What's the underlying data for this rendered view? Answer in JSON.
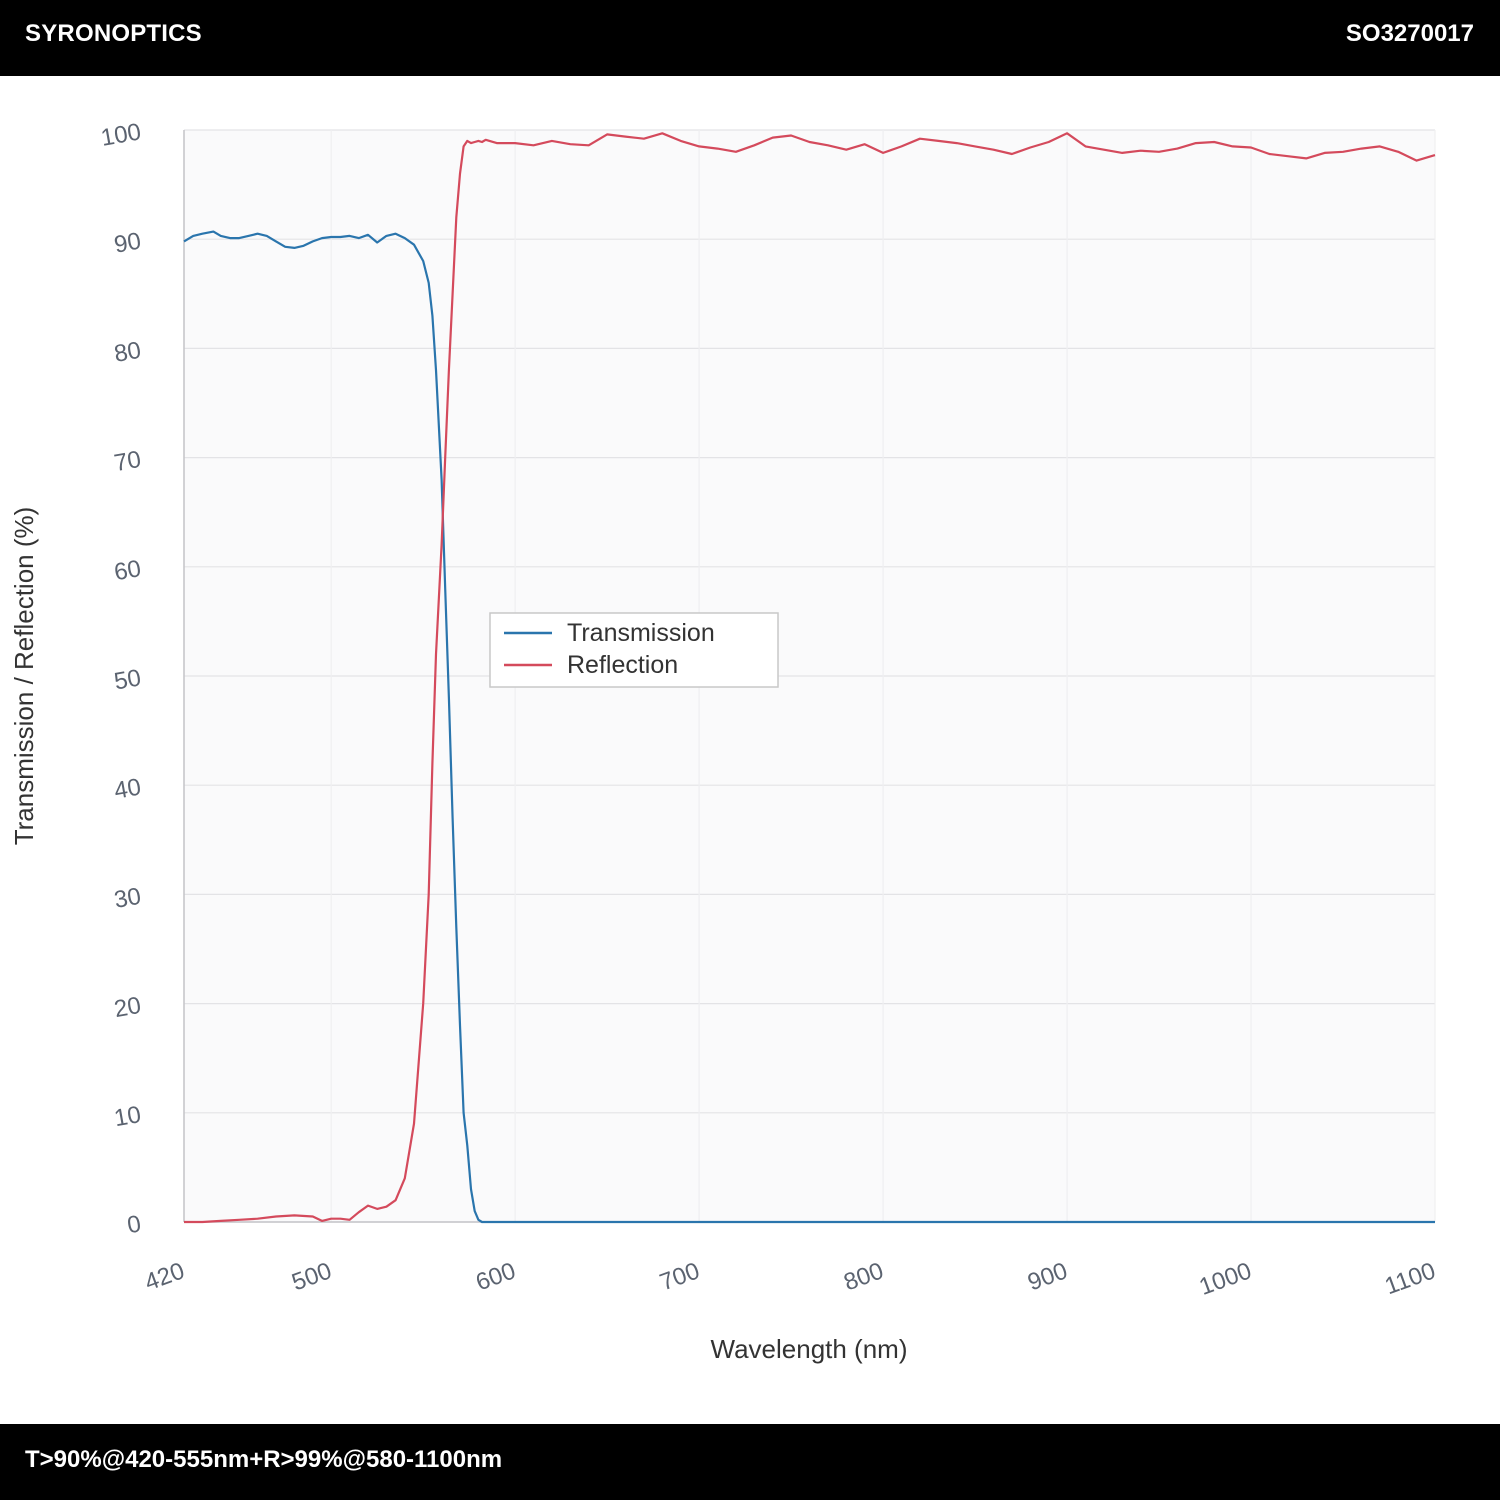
{
  "header": {
    "brand": "SYRONOPTICS",
    "part_number": "SO3270017"
  },
  "footer": {
    "spec": "T>90%@420-555nm+R>99%@580-1100nm"
  },
  "colors": {
    "transmission": "#2a75ad",
    "reflection": "#d44a5c"
  },
  "chart_data": {
    "type": "line",
    "title": "",
    "xlabel": "Wavelength (nm)",
    "ylabel": "Transmission / Reflection (%)",
    "xlim": [
      420,
      1100
    ],
    "ylim": [
      0,
      100
    ],
    "xticks": [
      420,
      500,
      600,
      700,
      800,
      900,
      1000,
      1100
    ],
    "yticks": [
      0,
      10,
      20,
      30,
      40,
      50,
      60,
      70,
      80,
      90,
      100
    ],
    "grid": true,
    "legend_position": "center-left",
    "series": [
      {
        "name": "Transmission",
        "x": [
          420,
          425,
          430,
          436,
          440,
          445,
          450,
          455,
          460,
          465,
          470,
          475,
          480,
          485,
          490,
          495,
          500,
          505,
          510,
          515,
          520,
          525,
          530,
          535,
          540,
          545,
          550,
          553,
          555,
          557,
          560,
          562,
          564,
          566,
          568,
          570,
          572,
          574,
          576,
          578,
          580,
          582,
          584,
          585,
          590,
          600,
          700,
          800,
          900,
          1000,
          1100
        ],
        "y": [
          89.8,
          90.3,
          90.5,
          90.7,
          90.3,
          90.1,
          90.1,
          90.3,
          90.5,
          90.3,
          89.8,
          89.3,
          89.2,
          89.4,
          89.8,
          90.1,
          90.2,
          90.2,
          90.3,
          90.1,
          90.4,
          89.7,
          90.3,
          90.5,
          90.1,
          89.5,
          88.0,
          86.0,
          83.0,
          78.0,
          68.0,
          58.0,
          48.0,
          37.0,
          27.0,
          18.0,
          10.0,
          7.0,
          3.0,
          1.0,
          0.2,
          0.0,
          0.0,
          0.0,
          0.0,
          0.0,
          0.0,
          0.0,
          0.0,
          0.0,
          0.0
        ]
      },
      {
        "name": "Reflection",
        "x": [
          420,
          430,
          440,
          450,
          460,
          470,
          480,
          490,
          495,
          500,
          505,
          510,
          515,
          520,
          525,
          530,
          535,
          540,
          545,
          550,
          553,
          555,
          557,
          560,
          562,
          564,
          566,
          568,
          570,
          572,
          574,
          576,
          578,
          580,
          582,
          584,
          590,
          600,
          610,
          620,
          630,
          640,
          650,
          660,
          670,
          680,
          690,
          700,
          710,
          720,
          730,
          740,
          750,
          760,
          770,
          780,
          790,
          800,
          810,
          820,
          830,
          840,
          850,
          860,
          870,
          880,
          890,
          900,
          910,
          920,
          930,
          940,
          950,
          960,
          970,
          980,
          990,
          1000,
          1010,
          1020,
          1030,
          1040,
          1050,
          1060,
          1070,
          1080,
          1090,
          1100
        ],
        "y": [
          0.0,
          0.0,
          0.1,
          0.2,
          0.3,
          0.5,
          0.6,
          0.5,
          0.1,
          0.3,
          0.3,
          0.2,
          0.9,
          1.5,
          1.2,
          1.4,
          2.0,
          4.0,
          9.0,
          20.0,
          30.0,
          42.0,
          52.0,
          62.0,
          70.0,
          78.0,
          85.0,
          92.0,
          96.0,
          98.5,
          99.0,
          98.8,
          98.9,
          99.0,
          98.9,
          99.1,
          98.8,
          98.8,
          98.6,
          99.0,
          98.7,
          98.6,
          99.6,
          99.4,
          99.2,
          99.7,
          99.0,
          98.5,
          98.3,
          98.0,
          98.6,
          99.3,
          99.5,
          98.9,
          98.6,
          98.2,
          98.7,
          97.9,
          98.5,
          99.2,
          99.0,
          98.8,
          98.5,
          98.2,
          97.8,
          98.4,
          98.9,
          99.7,
          98.5,
          98.2,
          97.9,
          98.1,
          98.0,
          98.3,
          98.8,
          98.9,
          98.5,
          98.4,
          97.8,
          97.6,
          97.4,
          97.9,
          98.0,
          98.3,
          98.5,
          98.0,
          97.2,
          97.7
        ]
      }
    ]
  }
}
